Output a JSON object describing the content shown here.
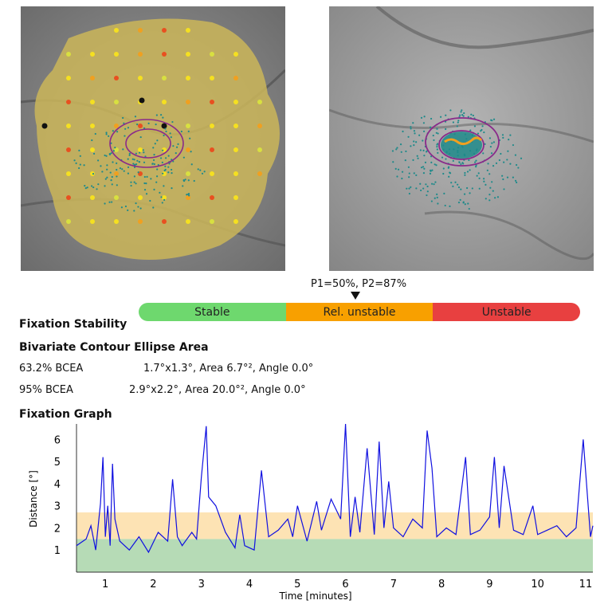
{
  "stability": {
    "probability_label": "P1=50%, P2=87%",
    "segments": [
      {
        "label": "Stable",
        "color": "#6ed86e"
      },
      {
        "label": "Rel. unstable",
        "color": "#f8a000"
      },
      {
        "label": "Unstable",
        "color": "#e84040"
      }
    ]
  },
  "headings": {
    "fixation_stability": "Fixation Stability",
    "bcea": "Bivariate Contour Ellipse Area",
    "fixation_graph": "Fixation Graph"
  },
  "bcea_rows": [
    {
      "label": "63.2% BCEA",
      "value": "1.7°x1.3°, Area 6.7°², Angle 0.0°"
    },
    {
      "label": "95% BCEA",
      "value": "2.9°x2.2°, Area 20.0°², Angle 0.0°"
    }
  ],
  "chart_data": {
    "type": "line",
    "xlabel": "Time [minutes]",
    "ylabel": "Distance [°]",
    "xlim": [
      0.4,
      11.15
    ],
    "ylim": [
      0.0,
      6.7
    ],
    "x_ticks": [
      1,
      2,
      3,
      4,
      5,
      6,
      7,
      8,
      9,
      10,
      11
    ],
    "y_ticks": [
      1,
      2,
      3,
      4,
      5,
      6
    ],
    "bands": [
      {
        "from": 0.0,
        "to": 1.5,
        "color": "#b6dbb6"
      },
      {
        "from": 1.5,
        "to": 2.7,
        "color": "#fde3b4"
      }
    ],
    "series": [
      {
        "color": "#1010e0",
        "points": [
          [
            0.4,
            1.2
          ],
          [
            0.6,
            1.5
          ],
          [
            0.7,
            2.1
          ],
          [
            0.8,
            1.0
          ],
          [
            0.9,
            3.1
          ],
          [
            0.95,
            5.2
          ],
          [
            1.0,
            1.6
          ],
          [
            1.05,
            3.0
          ],
          [
            1.1,
            1.2
          ],
          [
            1.15,
            4.9
          ],
          [
            1.2,
            2.4
          ],
          [
            1.3,
            1.4
          ],
          [
            1.5,
            1.0
          ],
          [
            1.7,
            1.6
          ],
          [
            1.9,
            0.9
          ],
          [
            2.1,
            1.8
          ],
          [
            2.3,
            1.4
          ],
          [
            2.4,
            4.2
          ],
          [
            2.5,
            1.6
          ],
          [
            2.6,
            1.2
          ],
          [
            2.8,
            1.8
          ],
          [
            2.9,
            1.5
          ],
          [
            3.0,
            4.3
          ],
          [
            3.1,
            6.6
          ],
          [
            3.15,
            3.4
          ],
          [
            3.3,
            3.0
          ],
          [
            3.5,
            1.8
          ],
          [
            3.7,
            1.1
          ],
          [
            3.8,
            2.6
          ],
          [
            3.9,
            1.2
          ],
          [
            4.1,
            1.0
          ],
          [
            4.25,
            4.6
          ],
          [
            4.4,
            1.6
          ],
          [
            4.6,
            1.9
          ],
          [
            4.8,
            2.4
          ],
          [
            4.9,
            1.6
          ],
          [
            5.0,
            3.0
          ],
          [
            5.2,
            1.4
          ],
          [
            5.4,
            3.2
          ],
          [
            5.5,
            1.9
          ],
          [
            5.7,
            3.3
          ],
          [
            5.9,
            2.4
          ],
          [
            6.0,
            6.7
          ],
          [
            6.1,
            1.6
          ],
          [
            6.2,
            3.4
          ],
          [
            6.3,
            1.8
          ],
          [
            6.45,
            5.6
          ],
          [
            6.6,
            1.7
          ],
          [
            6.7,
            5.9
          ],
          [
            6.8,
            2.0
          ],
          [
            6.9,
            4.1
          ],
          [
            7.0,
            2.0
          ],
          [
            7.2,
            1.6
          ],
          [
            7.4,
            2.4
          ],
          [
            7.6,
            2.0
          ],
          [
            7.7,
            6.4
          ],
          [
            7.8,
            4.7
          ],
          [
            7.9,
            1.6
          ],
          [
            8.1,
            2.0
          ],
          [
            8.3,
            1.7
          ],
          [
            8.5,
            5.2
          ],
          [
            8.6,
            1.7
          ],
          [
            8.8,
            1.9
          ],
          [
            9.0,
            2.5
          ],
          [
            9.1,
            5.2
          ],
          [
            9.2,
            2.0
          ],
          [
            9.3,
            4.8
          ],
          [
            9.5,
            1.9
          ],
          [
            9.7,
            1.7
          ],
          [
            9.9,
            3.0
          ],
          [
            10.0,
            1.7
          ],
          [
            10.2,
            1.9
          ],
          [
            10.4,
            2.1
          ],
          [
            10.6,
            1.6
          ],
          [
            10.8,
            2.0
          ],
          [
            10.95,
            6.0
          ],
          [
            11.1,
            1.6
          ],
          [
            11.15,
            2.1
          ]
        ]
      }
    ]
  },
  "images": {
    "left_alt": "microperimetry-map",
    "right_alt": "fixation-overlay-fundus"
  },
  "colors": {
    "fixation_dots": "#1f8a8a",
    "ellipse": "#8a2a8a",
    "fixation_cluster": "#f0a020"
  }
}
